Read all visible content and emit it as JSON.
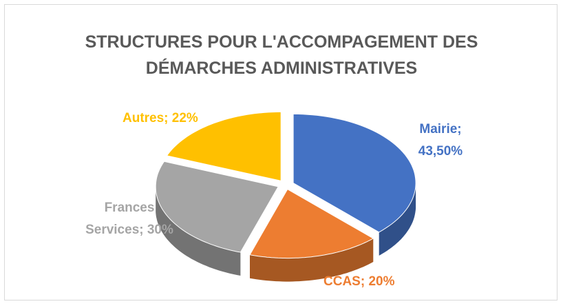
{
  "chart_data": {
    "type": "pie",
    "title": "STRUCTURES POUR L'ACCOMPAGEMENT DES DÉMARCHES ADMINISTRATIVES",
    "categories": [
      "Mairie",
      "CCAS",
      "Frances Services",
      "Autres"
    ],
    "values": [
      43.5,
      20,
      30,
      22
    ],
    "value_labels": [
      "Mairie; 43,50%",
      "CCAS; 20%",
      "Frances Services; 30%",
      "Autres; 22%"
    ],
    "colors": [
      "#4472c4",
      "#ed7d31",
      "#a5a5a5",
      "#ffc000"
    ]
  }
}
